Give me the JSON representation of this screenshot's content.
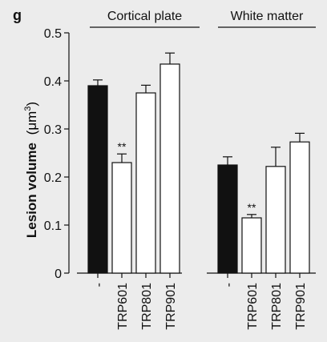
{
  "panel_label": "g",
  "chart_data": {
    "type": "bar",
    "ylabel_bold": "Lesion volume",
    "ylabel_unit_prefix": "(μm",
    "ylabel_unit_sup": "3",
    "ylabel_unit_suffix": ")",
    "ylim": [
      0,
      0.5
    ],
    "yticks": [
      0,
      0.1,
      0.2,
      0.3,
      0.4,
      0.5
    ],
    "ytick_labels": [
      "0",
      "0.1",
      "0.2",
      "0.3",
      "0.4",
      "0.5"
    ],
    "grid": false,
    "groups": [
      {
        "name": "Cortical plate",
        "categories": [
          "-",
          "TRP601",
          "TRP801",
          "TRP901"
        ],
        "values": [
          0.39,
          0.23,
          0.375,
          0.435
        ],
        "errors": [
          0.012,
          0.018,
          0.016,
          0.023
        ],
        "fills": [
          "#111111",
          "#ffffff",
          "#ffffff",
          "#ffffff"
        ],
        "annotations": [
          "",
          "**",
          "",
          ""
        ]
      },
      {
        "name": "White matter",
        "categories": [
          "-",
          "TRP601",
          "TRP801",
          "TRP901"
        ],
        "values": [
          0.225,
          0.115,
          0.222,
          0.273
        ],
        "errors": [
          0.017,
          0.007,
          0.04,
          0.018
        ],
        "fills": [
          "#111111",
          "#ffffff",
          "#ffffff",
          "#ffffff"
        ],
        "annotations": [
          "",
          "**",
          "",
          ""
        ]
      }
    ]
  }
}
